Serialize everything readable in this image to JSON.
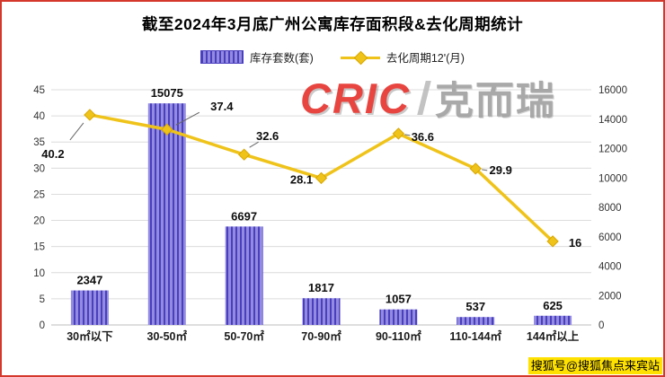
{
  "frame": {
    "watermark": {
      "cric": "CRIC",
      "name": "克而瑞"
    },
    "sohu_badge": "搜狐号@搜狐焦点来宾站"
  },
  "chart_data": {
    "type": "bar+line",
    "title": "截至2024年3月底广州公寓库存面积段&去化周期统计",
    "categories": [
      "30㎡以下",
      "30-50㎡",
      "50-70㎡",
      "70-90㎡",
      "90-110㎡",
      "110-144㎡",
      "144㎡以上"
    ],
    "series": [
      {
        "name": "库存套数(套)",
        "type": "bar",
        "axis": "right",
        "values": [
          2347,
          15075,
          6697,
          1817,
          1057,
          537,
          625
        ]
      },
      {
        "name": "去化周期12'(月)",
        "type": "line",
        "axis": "left",
        "values": [
          40.2,
          37.4,
          32.6,
          28.1,
          36.6,
          29.9,
          16
        ]
      }
    ],
    "left_axis": {
      "min": 0,
      "max": 45,
      "step": 5,
      "ticks": [
        0,
        5,
        10,
        15,
        20,
        25,
        30,
        35,
        40,
        45
      ]
    },
    "right_axis": {
      "min": 0,
      "max": 16000,
      "step": 2000,
      "ticks": [
        0,
        2000,
        4000,
        6000,
        8000,
        10000,
        12000,
        14000,
        16000
      ]
    },
    "legend_position": "top",
    "grid": true,
    "colors": {
      "bar_fill": "#938BE0",
      "bar_stripe": "#4A3FBF",
      "line": "#EFC319",
      "marker_edge": "#D9A700",
      "label": "#0d0d0d",
      "grid": "#DCDCDC",
      "baseline": "#BDBDBD",
      "border": "#D4382C"
    }
  }
}
